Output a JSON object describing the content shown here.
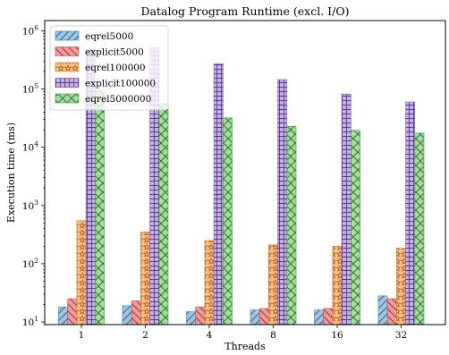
{
  "chart_data": {
    "type": "bar",
    "title": "Datalog Program Runtime (excl. I/O)",
    "xlabel": "Threads",
    "ylabel": "Execution time (ms)",
    "yscale": "log",
    "ylim": [
      9,
      1500000
    ],
    "categories": [
      "1",
      "2",
      "4",
      "8",
      "16",
      "32"
    ],
    "ytick_labels": [
      {
        "value": 10,
        "base": "10",
        "exp": "1"
      },
      {
        "value": 100,
        "base": "10",
        "exp": "2"
      },
      {
        "value": 1000,
        "base": "10",
        "exp": "3"
      },
      {
        "value": 10000,
        "base": "10",
        "exp": "4"
      },
      {
        "value": 100000,
        "base": "10",
        "exp": "5"
      },
      {
        "value": 1000000,
        "base": "10",
        "exp": "6"
      }
    ],
    "legend_position": "top-left",
    "grid": false,
    "series": [
      {
        "name": "eqrel5000",
        "color": "#9ec6e3",
        "edge": "#3f7fb3",
        "hatch": "diag",
        "values": [
          18,
          19,
          15,
          16,
          16,
          28
        ]
      },
      {
        "name": "explicit5000",
        "color": "#ef9b9b",
        "edge": "#c94a4a",
        "hatch": "backdiag",
        "values": [
          25,
          23,
          18,
          17,
          17,
          25
        ]
      },
      {
        "name": "eqrel100000",
        "color": "#f7c08a",
        "edge": "#d97b24",
        "hatch": "stars",
        "values": [
          550,
          350,
          250,
          210,
          200,
          185
        ]
      },
      {
        "name": "explicit100000",
        "color": "#c8aee6",
        "edge": "#7a54ad",
        "hatch": "grid",
        "values": [
          480000,
          520000,
          270000,
          145000,
          82000,
          60000
        ]
      },
      {
        "name": "eqrel5000000",
        "color": "#a6dca0",
        "edge": "#3f9a3c",
        "hatch": "cross",
        "values": [
          95000,
          56000,
          32000,
          23000,
          19500,
          17500
        ]
      }
    ]
  }
}
